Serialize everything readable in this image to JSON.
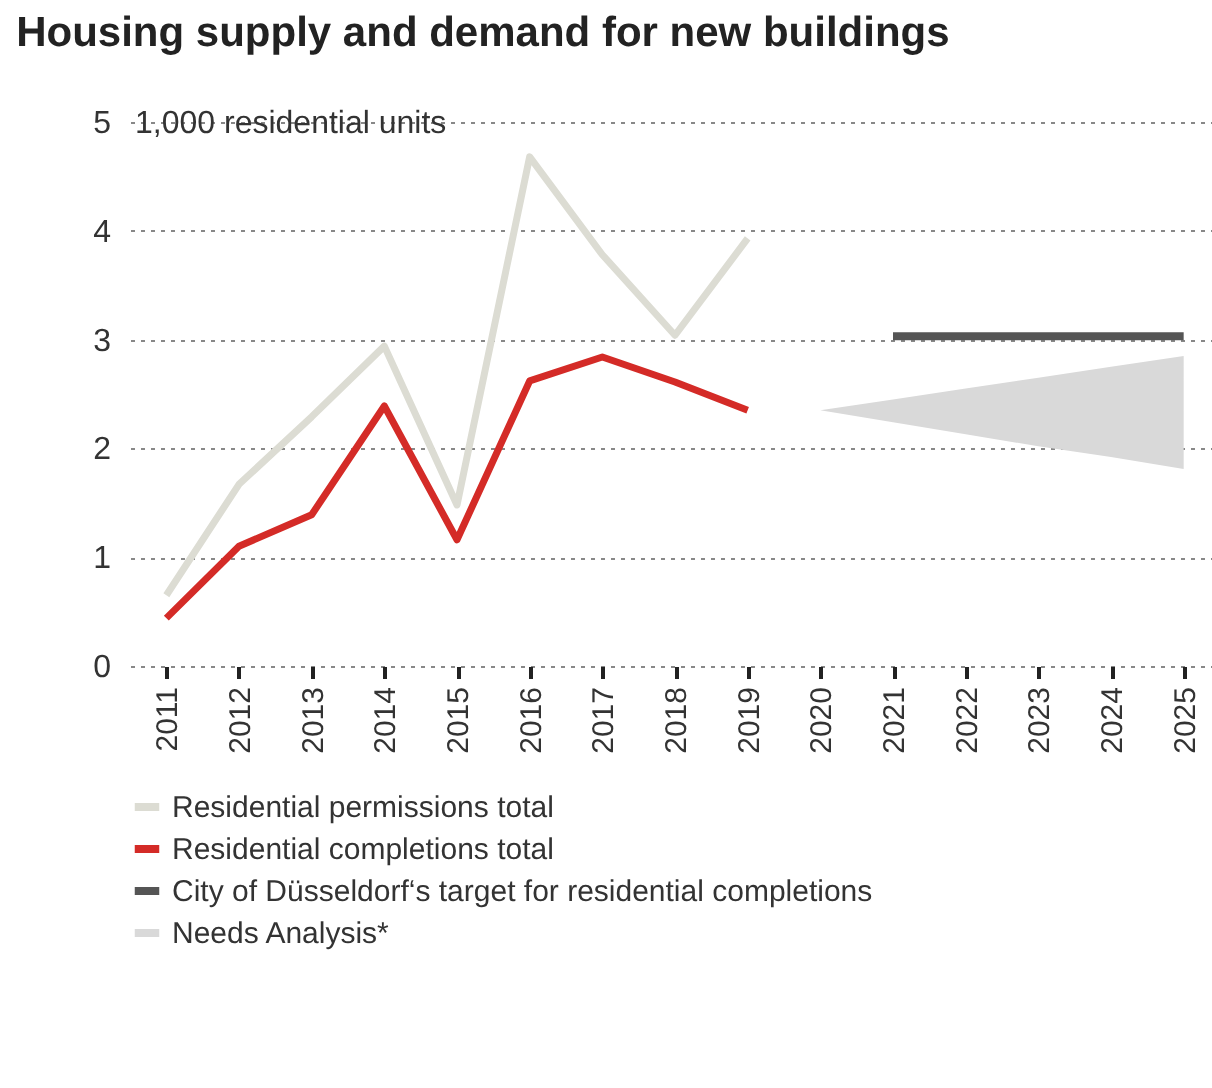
{
  "chart_data": {
    "type": "line",
    "title": "Housing supply and demand for new buildings",
    "ylabel": "1,000 residential units",
    "categories": [
      "2011",
      "2012",
      "2013",
      "2014",
      "2015",
      "2016",
      "2017",
      "2018",
      "2019",
      "2020",
      "2021",
      "2022",
      "2023",
      "2024",
      "2025"
    ],
    "series": [
      {
        "name": "Residential permissions total",
        "color": "#dcdcd3",
        "values": [
          0.65,
          1.67,
          2.29,
          2.94,
          1.48,
          4.68,
          3.78,
          3.04,
          3.93,
          null,
          null,
          null,
          null,
          null,
          null
        ]
      },
      {
        "name": "Residential completions total",
        "color": "#d42b27",
        "values": [
          0.44,
          1.1,
          1.39,
          2.39,
          1.16,
          2.62,
          2.84,
          2.61,
          2.35,
          null,
          null,
          null,
          null,
          null,
          null
        ]
      },
      {
        "name": "City of  Düsseldorf‘s target for residential completions",
        "color": "#555555",
        "values": [
          null,
          null,
          null,
          null,
          null,
          null,
          null,
          null,
          null,
          null,
          3.03,
          3.03,
          3.03,
          3.03,
          3.03
        ]
      },
      {
        "name": "Needs Analysis*",
        "type": "area",
        "color": "#d9d9d9",
        "values": [
          null,
          null,
          null,
          null,
          null,
          null,
          null,
          null,
          null,
          null,
          null,
          null,
          null,
          null,
          null
        ],
        "lower": [
          null,
          null,
          null,
          null,
          null,
          null,
          null,
          null,
          null,
          2.35,
          2.24,
          2.13,
          2.02,
          1.92,
          1.81
        ],
        "upper": [
          null,
          null,
          null,
          null,
          null,
          null,
          null,
          null,
          null,
          2.35,
          2.45,
          2.55,
          2.65,
          2.75,
          2.85
        ]
      }
    ],
    "ylim": [
      0,
      5
    ],
    "yticks": [
      0,
      1,
      2,
      3,
      4,
      5
    ],
    "grid": "y",
    "legend": "bottom",
    "marker": "none",
    "line_style": "solid"
  }
}
